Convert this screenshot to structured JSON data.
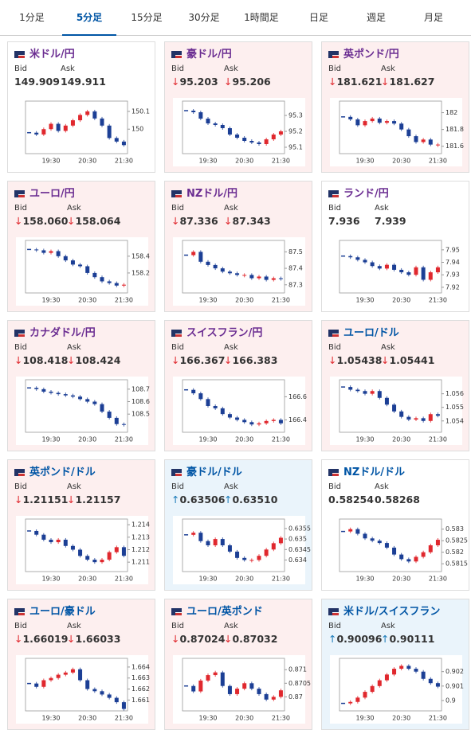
{
  "tabs": {
    "items": [
      "1分足",
      "5分足",
      "15分足",
      "30分足",
      "1時間足",
      "日足",
      "週足",
      "月足"
    ],
    "active": 1
  },
  "labels": {
    "bid": "Bid",
    "ask": "Ask"
  },
  "times": [
    null,
    null,
    null,
    "19:30",
    null,
    null,
    null,
    null,
    "20:30",
    null,
    null,
    null,
    null,
    "21:30"
  ],
  "up_color": "#e0282e",
  "down_color": "#1c3f95",
  "cards": [
    {
      "name": "米ドル/円",
      "title_color": "#6a2c91",
      "bg": "#ffffff",
      "bid": "149.909",
      "ask": "149.911",
      "ylim": [
        149.88,
        150.14
      ],
      "yticks": [
        150,
        150.1
      ],
      "close": [
        149.98,
        149.97,
        150.0,
        150.03,
        149.99,
        150.02,
        150.05,
        150.08,
        150.1,
        150.06,
        150.02,
        149.95,
        149.93,
        149.91
      ]
    },
    {
      "name": "豪ドル/円",
      "title_color": "#6a2c91",
      "bg": "#fdefef",
      "arrow": "↓",
      "arrow_color": "#e0282e",
      "bid": "95.203",
      "ask": "95.206",
      "ylim": [
        95.08,
        95.37
      ],
      "yticks": [
        95.1,
        95.2,
        95.3
      ],
      "close": [
        95.33,
        95.32,
        95.28,
        95.25,
        95.24,
        95.22,
        95.18,
        95.16,
        95.14,
        95.13,
        95.12,
        95.15,
        95.18,
        95.2
      ]
    },
    {
      "name": "英ポンド/円",
      "title_color": "#6a2c91",
      "bg": "#fdefef",
      "arrow": "↓",
      "arrow_color": "#e0282e",
      "bid": "181.621",
      "ask": "181.627",
      "ylim": [
        181.55,
        182.1
      ],
      "yticks": [
        181.6,
        181.8,
        182
      ],
      "close": [
        181.95,
        181.92,
        181.85,
        181.9,
        181.93,
        181.88,
        181.9,
        181.87,
        181.8,
        181.72,
        181.65,
        181.68,
        181.62,
        181.62
      ]
    },
    {
      "name": "ユーロ/円",
      "title_color": "#6a2c91",
      "bg": "#fdefef",
      "arrow": "↓",
      "arrow_color": "#e0282e",
      "bid": "158.060",
      "ask": "158.064",
      "ylim": [
        158.0,
        158.55
      ],
      "yticks": [
        158.2,
        158.4
      ],
      "close": [
        158.48,
        158.47,
        158.44,
        158.46,
        158.4,
        158.35,
        158.3,
        158.28,
        158.2,
        158.15,
        158.1,
        158.08,
        158.05,
        158.06
      ]
    },
    {
      "name": "NZドル/円",
      "title_color": "#6a2c91",
      "bg": "#fdefef",
      "arrow": "↓",
      "arrow_color": "#e0282e",
      "bid": "87.336",
      "ask": "87.343",
      "ylim": [
        87.27,
        87.55
      ],
      "yticks": [
        87.3,
        87.4,
        87.5
      ],
      "close": [
        87.48,
        87.5,
        87.44,
        87.42,
        87.4,
        87.38,
        87.37,
        87.36,
        87.36,
        87.34,
        87.35,
        87.33,
        87.34,
        87.336
      ]
    },
    {
      "name": "ランド/円",
      "title_color": "#6a2c91",
      "bg": "#ffffff",
      "bid": "7.936",
      "ask": "7.939",
      "ylim": [
        7.918,
        7.955
      ],
      "yticks": [
        7.92,
        7.93,
        7.94,
        7.95
      ],
      "close": [
        7.945,
        7.944,
        7.942,
        7.94,
        7.937,
        7.935,
        7.938,
        7.934,
        7.932,
        7.93,
        7.936,
        7.926,
        7.932,
        7.936
      ]
    },
    {
      "name": "カナダドル/円",
      "title_color": "#6a2c91",
      "bg": "#fdefef",
      "arrow": "↓",
      "arrow_color": "#e0282e",
      "bid": "108.418",
      "ask": "108.424",
      "ylim": [
        108.38,
        108.75
      ],
      "yticks": [
        108.5,
        108.6,
        108.7
      ],
      "close": [
        108.71,
        108.7,
        108.68,
        108.67,
        108.66,
        108.65,
        108.64,
        108.62,
        108.6,
        108.58,
        108.52,
        108.47,
        108.42,
        108.418
      ]
    },
    {
      "name": "スイスフラン/円",
      "title_color": "#6a2c91",
      "bg": "#fdefef",
      "arrow": "↓",
      "arrow_color": "#e0282e",
      "bid": "166.367",
      "ask": "166.383",
      "ylim": [
        166.32,
        166.72
      ],
      "yticks": [
        166.4,
        166.6
      ],
      "close": [
        166.66,
        166.63,
        166.58,
        166.52,
        166.5,
        166.45,
        166.42,
        166.4,
        166.38,
        166.36,
        166.37,
        166.39,
        166.4,
        166.37
      ]
    },
    {
      "name": "ユーロ/ドル",
      "title_color": "#0055a5",
      "bg": "#fdefef",
      "arrow": "↓",
      "arrow_color": "#e0282e",
      "bid": "1.05438",
      "ask": "1.05441",
      "ylim": [
        1.0534,
        1.0568
      ],
      "yticks": [
        1.054,
        1.055,
        1.056
      ],
      "close": [
        1.0565,
        1.0563,
        1.0562,
        1.056,
        1.0562,
        1.0557,
        1.0552,
        1.0547,
        1.0543,
        1.0541,
        1.0542,
        1.054,
        1.0545,
        1.05438
      ]
    },
    {
      "name": "英ポンド/ドル",
      "title_color": "#0055a5",
      "bg": "#fdefef",
      "arrow": "↓",
      "arrow_color": "#e0282e",
      "bid": "1.21151",
      "ask": "1.21157",
      "ylim": [
        1.2105,
        1.2142
      ],
      "yticks": [
        1.211,
        1.212,
        1.213,
        1.214
      ],
      "close": [
        1.2135,
        1.2132,
        1.2128,
        1.2126,
        1.2128,
        1.2123,
        1.212,
        1.2115,
        1.2112,
        1.211,
        1.2112,
        1.2118,
        1.2122,
        1.21151
      ]
    },
    {
      "name": "豪ドル/ドル",
      "title_color": "#0055a5",
      "bg": "#eaf4fb",
      "arrow": "↑",
      "arrow_color": "#1a7ab8",
      "bid": "0.63506",
      "ask": "0.63510",
      "ylim": [
        0.6336,
        0.6358
      ],
      "yticks": [
        0.634,
        0.6345,
        0.635,
        0.6355
      ],
      "close": [
        0.6352,
        0.6353,
        0.6349,
        0.6347,
        0.635,
        0.6347,
        0.6344,
        0.6341,
        0.634,
        0.634,
        0.6342,
        0.6345,
        0.6348,
        0.63506
      ]
    },
    {
      "name": "NZドル/ドル",
      "title_color": "#0055a5",
      "bg": "#ffffff",
      "bid": "0.58254",
      "ask": "0.58268",
      "ylim": [
        0.5813,
        0.5833
      ],
      "yticks": [
        0.5815,
        0.582,
        0.5825,
        0.583
      ],
      "close": [
        0.5829,
        0.583,
        0.5828,
        0.5826,
        0.5825,
        0.5824,
        0.5822,
        0.5819,
        0.5817,
        0.5816,
        0.5818,
        0.582,
        0.5823,
        0.58254
      ]
    },
    {
      "name": "ユーロ/豪ドル",
      "title_color": "#0055a5",
      "bg": "#fdefef",
      "arrow": "↓",
      "arrow_color": "#e0282e",
      "bid": "1.66019",
      "ask": "1.66033",
      "ylim": [
        1.6603,
        1.6645
      ],
      "yticks": [
        1.661,
        1.662,
        1.663,
        1.664
      ],
      "close": [
        1.6625,
        1.6622,
        1.6628,
        1.663,
        1.6633,
        1.6635,
        1.6638,
        1.6628,
        1.662,
        1.6618,
        1.6615,
        1.6612,
        1.6608,
        1.66019
      ]
    },
    {
      "name": "ユーロ/英ポンド",
      "title_color": "#0055a5",
      "bg": "#fdefef",
      "arrow": "↓",
      "arrow_color": "#e0282e",
      "bid": "0.87024",
      "ask": "0.87032",
      "ylim": [
        0.8696,
        0.8713
      ],
      "yticks": [
        0.87,
        0.8705,
        0.871
      ],
      "close": [
        0.8704,
        0.8702,
        0.8706,
        0.8708,
        0.8709,
        0.8704,
        0.8701,
        0.8703,
        0.8705,
        0.8703,
        0.8701,
        0.8699,
        0.87,
        0.87024
      ]
    },
    {
      "name": "米ドル/スイスフラン",
      "title_color": "#0055a5",
      "bg": "#eaf4fb",
      "arrow": "↑",
      "arrow_color": "#1a7ab8",
      "bid": "0.90096",
      "ask": "0.90111",
      "ylim": [
        0.8995,
        0.9027
      ],
      "yticks": [
        0.9,
        0.901,
        0.902
      ],
      "close": [
        0.8998,
        0.8999,
        0.9002,
        0.9006,
        0.901,
        0.9014,
        0.9018,
        0.9022,
        0.9024,
        0.9022,
        0.902,
        0.9015,
        0.9012,
        0.90096
      ]
    }
  ]
}
